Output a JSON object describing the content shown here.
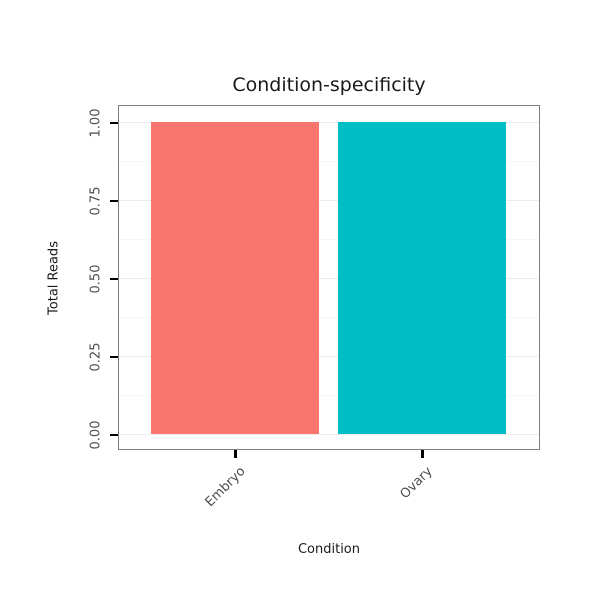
{
  "chart_data": {
    "type": "bar",
    "title": "Condition-specificity",
    "xlabel": "Condition",
    "ylabel": "Total Reads",
    "categories": [
      "Embryo",
      "Ovary"
    ],
    "values": [
      1.0,
      1.0
    ],
    "bar_colors": [
      "#F8766D",
      "#00BFC4"
    ],
    "y_ticks": [
      0,
      0.25,
      0.5,
      0.75,
      1
    ],
    "y_tick_labels": [
      "0.00",
      "0.25",
      "0.50",
      "0.75",
      "1.00"
    ],
    "ylim": [
      0,
      1.05
    ],
    "grid": true,
    "legend": "none",
    "panel_border_color": "#7f7f7f",
    "tick_color": "#000000"
  }
}
